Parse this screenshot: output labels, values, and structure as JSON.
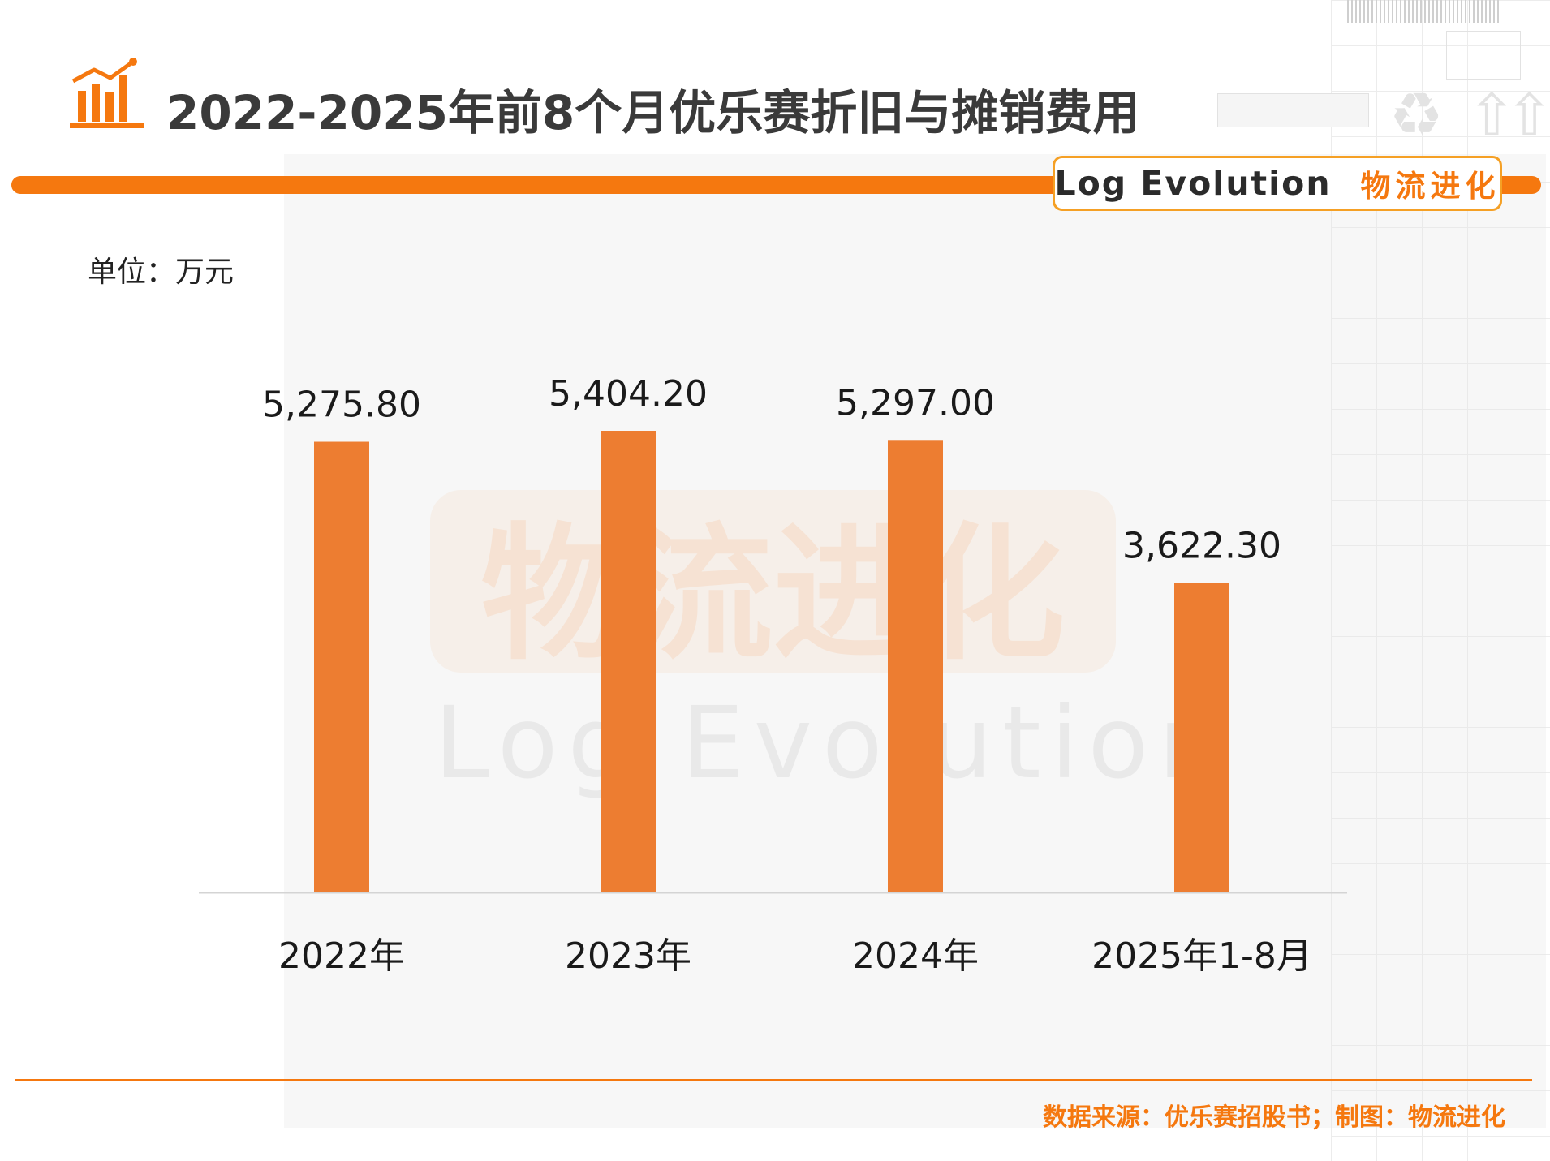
{
  "header": {
    "title": "2022-2025年前8个月优乐赛折旧与摊销费用"
  },
  "brand": {
    "en": "Log Evolution",
    "cn": "物流进化",
    "color": "#f5780f"
  },
  "watermark": {
    "cn": "物流进化",
    "en": "Log Evolution"
  },
  "unit_label": "单位：万元",
  "footer": {
    "source": "数据来源：优乐赛招股书；制图：物流进化"
  },
  "chart_data": {
    "type": "bar",
    "categories": [
      "2022年",
      "2023年",
      "2024年",
      "2025年1-8月"
    ],
    "values": [
      5275.8,
      5404.2,
      5297.0,
      3622.3
    ],
    "data_labels": [
      "5,275.80",
      "5,404.20",
      "5,297.00",
      "3,622.30"
    ],
    "bar_color": "#ed7d31",
    "ylim": [
      0,
      5404.2
    ],
    "grid": false,
    "legend": "none"
  }
}
